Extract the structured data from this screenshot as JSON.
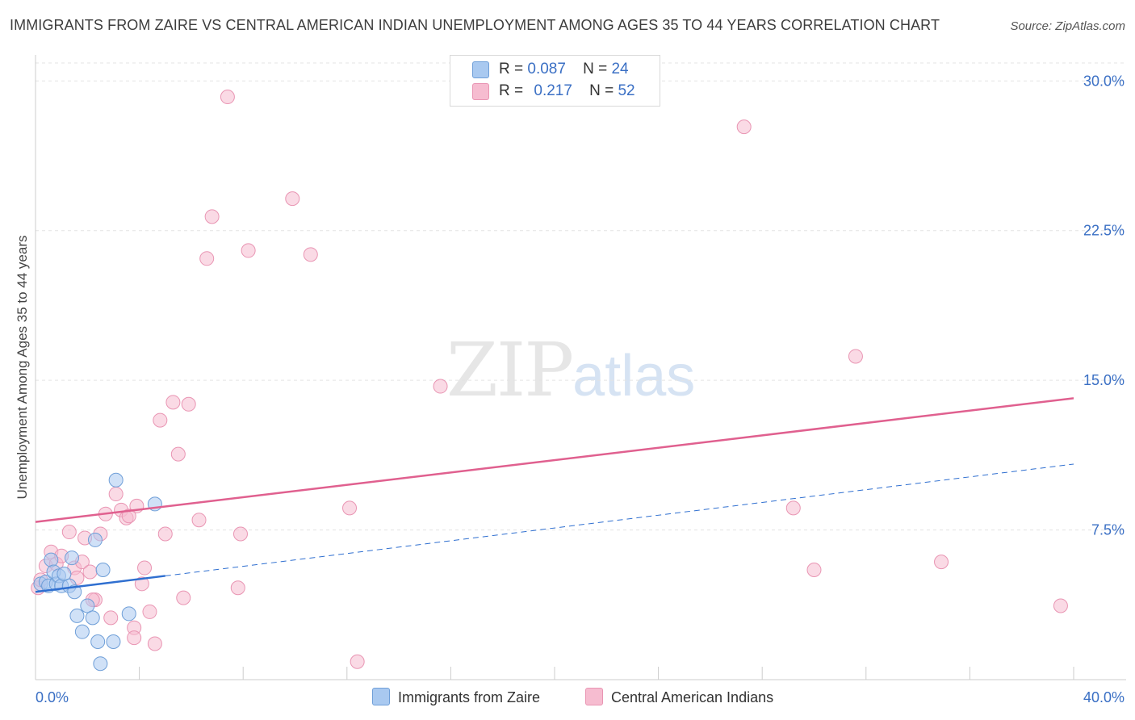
{
  "header": {
    "title": "IMMIGRANTS FROM ZAIRE VS CENTRAL AMERICAN INDIAN UNEMPLOYMENT AMONG AGES 35 TO 44 YEARS CORRELATION CHART",
    "source": "Source: ZipAtlas.com"
  },
  "watermark": {
    "zip": "ZIP",
    "atlas": "atlas"
  },
  "legend": {
    "rows": [
      {
        "r_label": "R =",
        "r_value": "0.087",
        "n_label": "N =",
        "n_value": "24"
      },
      {
        "r_label": "R =",
        "r_value": "0.217",
        "n_label": "N =",
        "n_value": "52"
      }
    ]
  },
  "bottom_legend": {
    "series1": "Immigrants from Zaire",
    "series2": "Central American Indians"
  },
  "colors": {
    "series1_fill": "#a9c9f0",
    "series1_stroke": "#6f9fd8",
    "series1_line": "#2f6fd0",
    "series2_fill": "#f6bcd0",
    "series2_stroke": "#e995b3",
    "series2_line": "#e0608f",
    "axis_text": "#3a6fc4",
    "grid": "#e3e3e3"
  },
  "chart_data": {
    "type": "scatter",
    "title": "IMMIGRANTS FROM ZAIRE VS CENTRAL AMERICAN INDIAN UNEMPLOYMENT AMONG AGES 35 TO 44 YEARS CORRELATION CHART",
    "xlabel": "",
    "ylabel": "Unemployment Among Ages 35 to 44 years",
    "xlim": [
      0,
      40
    ],
    "ylim": [
      0,
      30.9
    ],
    "x_tick_labels": [
      "0.0%",
      "40.0%"
    ],
    "y_ticks": [
      7.5,
      15.0,
      22.5,
      30.0
    ],
    "y_tick_labels": [
      "7.5%",
      "15.0%",
      "22.5%",
      "30.0%"
    ],
    "grid": true,
    "legend_position": "top-center",
    "series": [
      {
        "name": "Immigrants from Zaire",
        "r": 0.087,
        "n": 24,
        "points": [
          [
            0.2,
            4.8
          ],
          [
            0.4,
            4.9
          ],
          [
            0.5,
            4.7
          ],
          [
            0.6,
            6.0
          ],
          [
            0.7,
            5.4
          ],
          [
            0.8,
            4.8
          ],
          [
            0.9,
            5.2
          ],
          [
            1.0,
            4.7
          ],
          [
            1.1,
            5.3
          ],
          [
            1.3,
            4.7
          ],
          [
            1.4,
            6.1
          ],
          [
            1.5,
            4.4
          ],
          [
            1.6,
            3.2
          ],
          [
            1.8,
            2.4
          ],
          [
            2.0,
            3.7
          ],
          [
            2.2,
            3.1
          ],
          [
            2.3,
            7.0
          ],
          [
            2.4,
            1.9
          ],
          [
            2.6,
            5.5
          ],
          [
            3.1,
            10.0
          ],
          [
            3.0,
            1.9
          ],
          [
            3.6,
            3.3
          ],
          [
            4.6,
            8.8
          ],
          [
            2.5,
            0.8
          ]
        ],
        "trend": {
          "x0": 0,
          "y0": 4.4,
          "x1": 5.0,
          "y1": 5.2,
          "extended_x1": 40,
          "extended_y1": 10.8
        }
      },
      {
        "name": "Central American Indians",
        "r": 0.217,
        "n": 52,
        "points": [
          [
            0.1,
            4.6
          ],
          [
            0.2,
            5.0
          ],
          [
            0.4,
            5.7
          ],
          [
            0.6,
            6.4
          ],
          [
            0.8,
            5.8
          ],
          [
            1.0,
            6.2
          ],
          [
            1.3,
            7.4
          ],
          [
            1.5,
            5.6
          ],
          [
            1.6,
            5.1
          ],
          [
            1.8,
            5.9
          ],
          [
            1.9,
            7.1
          ],
          [
            2.1,
            5.4
          ],
          [
            2.3,
            4.0
          ],
          [
            2.5,
            7.3
          ],
          [
            2.7,
            8.3
          ],
          [
            2.9,
            3.1
          ],
          [
            3.1,
            9.3
          ],
          [
            3.3,
            8.5
          ],
          [
            3.5,
            8.1
          ],
          [
            3.8,
            2.6
          ],
          [
            3.8,
            2.1
          ],
          [
            3.9,
            8.7
          ],
          [
            4.1,
            4.8
          ],
          [
            4.2,
            5.6
          ],
          [
            4.4,
            3.4
          ],
          [
            4.6,
            1.8
          ],
          [
            4.8,
            13.0
          ],
          [
            5.0,
            7.3
          ],
          [
            5.3,
            13.9
          ],
          [
            5.5,
            11.3
          ],
          [
            5.7,
            4.1
          ],
          [
            5.9,
            13.8
          ],
          [
            6.3,
            8.0
          ],
          [
            6.6,
            21.1
          ],
          [
            6.8,
            23.2
          ],
          [
            7.4,
            29.2
          ],
          [
            7.8,
            4.6
          ],
          [
            7.9,
            7.3
          ],
          [
            8.2,
            21.5
          ],
          [
            9.9,
            24.1
          ],
          [
            10.6,
            21.3
          ],
          [
            12.1,
            8.6
          ],
          [
            12.4,
            0.9
          ],
          [
            15.6,
            14.7
          ],
          [
            27.3,
            27.7
          ],
          [
            29.2,
            8.6
          ],
          [
            30.0,
            5.5
          ],
          [
            31.6,
            16.2
          ],
          [
            34.9,
            5.9
          ],
          [
            39.5,
            3.7
          ],
          [
            2.2,
            4.0
          ],
          [
            3.6,
            8.2
          ]
        ],
        "trend": {
          "x0": 0,
          "y0": 7.9,
          "x1": 40,
          "y1": 14.1
        }
      }
    ]
  }
}
